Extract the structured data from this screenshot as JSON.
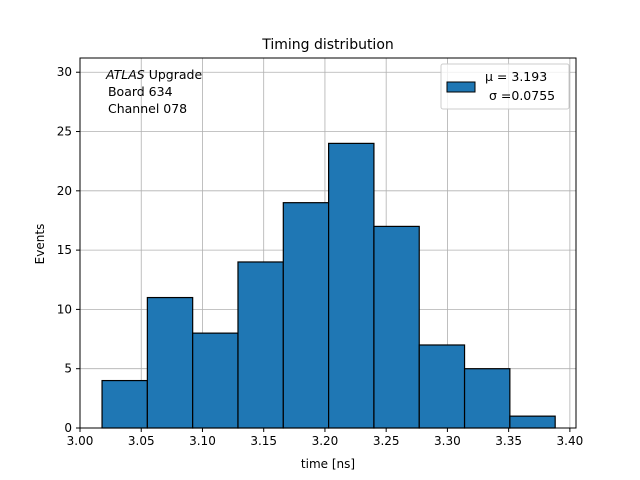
{
  "chart_data": {
    "type": "bar",
    "title": "Timing distribution",
    "xlabel": "time [ns]",
    "ylabel": "Events",
    "xlim": [
      3.0,
      3.405
    ],
    "ylim": [
      0,
      31.2
    ],
    "xticks": [
      3.0,
      3.05,
      3.1,
      3.15,
      3.2,
      3.25,
      3.3,
      3.35,
      3.4
    ],
    "xtick_labels": [
      "3.00",
      "3.05",
      "3.10",
      "3.15",
      "3.20",
      "3.25",
      "3.30",
      "3.35",
      "3.40"
    ],
    "yticks": [
      0,
      5,
      10,
      15,
      20,
      25,
      30
    ],
    "ytick_labels": [
      "0",
      "5",
      "10",
      "15",
      "20",
      "25",
      "30"
    ],
    "bin_edges": [
      3.018,
      3.055,
      3.092,
      3.129,
      3.166,
      3.203,
      3.24,
      3.277,
      3.314,
      3.351,
      3.388
    ],
    "values": [
      4,
      11,
      8,
      14,
      19,
      24,
      17,
      7,
      5,
      1
    ],
    "grid": true,
    "legend_position": "top-right",
    "legend": {
      "line1": "μ = 3.193",
      "line2": "σ =0.0755"
    },
    "annotation": {
      "italic_part": "ATLAS",
      "rest": " Upgrade",
      "line2": " Board 634",
      "line3": " Channel 078"
    },
    "colors": {
      "bar_fill": "#1f77b4",
      "bar_edge": "#000000",
      "grid": "#b0b0b0"
    }
  }
}
